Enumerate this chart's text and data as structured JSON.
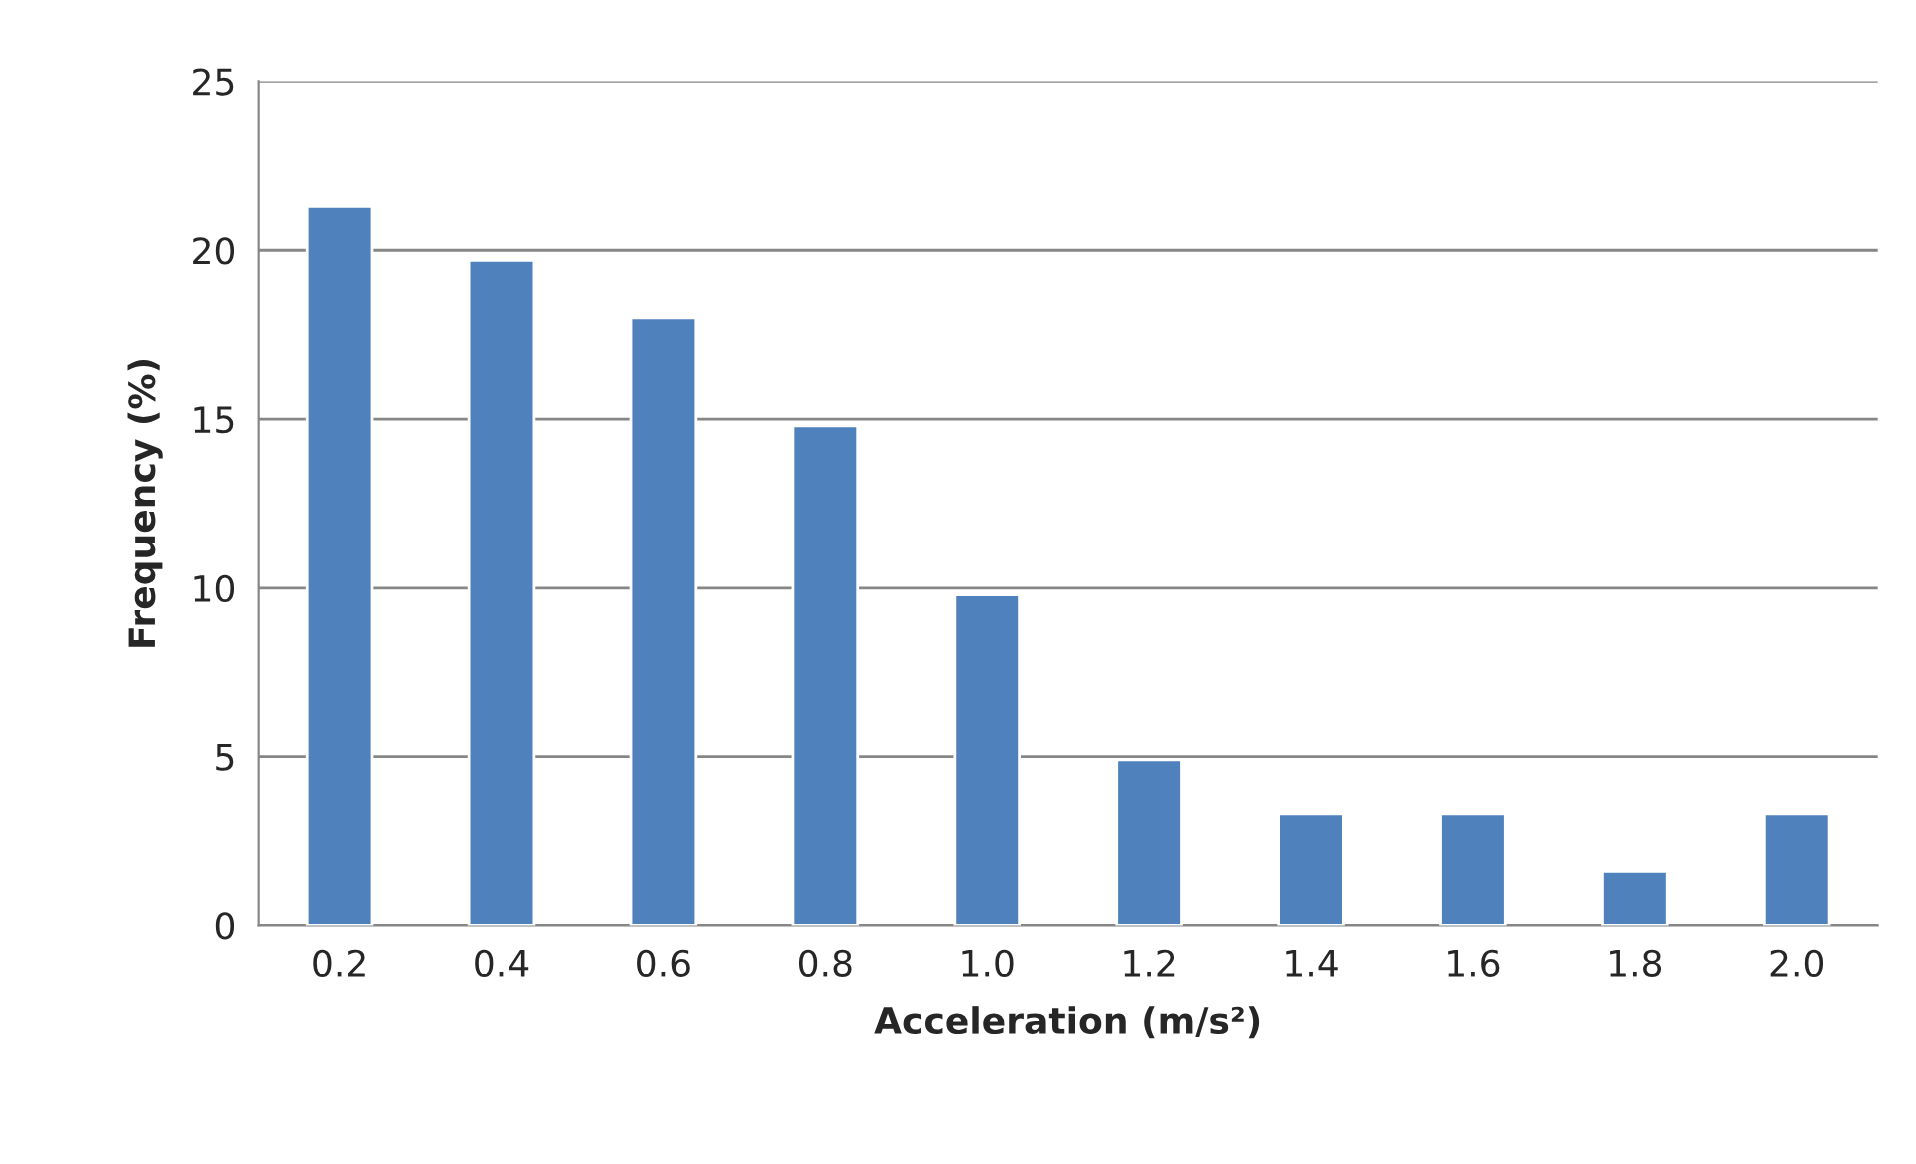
{
  "chart_data": {
    "type": "bar",
    "xlabel": "Acceleration (m/s²)",
    "ylabel": "Frequency (%)",
    "categories": [
      "0.2",
      "0.4",
      "0.6",
      "0.8",
      "1.0",
      "1.2",
      "1.4",
      "1.6",
      "1.8",
      "2.0"
    ],
    "values": [
      21.3,
      19.7,
      18.0,
      14.8,
      9.8,
      4.9,
      3.3,
      3.3,
      1.6,
      3.3
    ],
    "color": "#4f81bd",
    "ylim": [
      0,
      25
    ],
    "yticks": [
      0,
      5,
      10,
      15,
      20,
      25
    ],
    "grid": "y",
    "legend": false
  }
}
